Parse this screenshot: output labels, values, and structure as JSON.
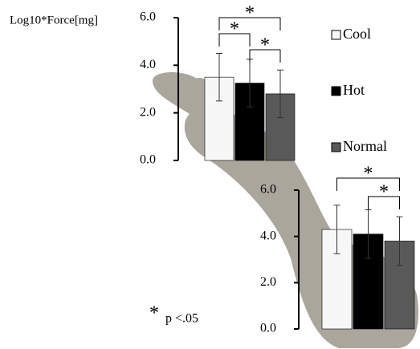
{
  "chart_data": {
    "type": "bar",
    "y_label": "Log10*Force[mg]",
    "categories": [
      null,
      null
    ],
    "series": [
      {
        "name": "Cool",
        "color": "#f7f7f7",
        "values": [
          3.5,
          4.3
        ],
        "errors": [
          1.0,
          1.05
        ]
      },
      {
        "name": "Hot",
        "color": "#000000",
        "values": [
          3.25,
          4.1
        ],
        "errors": [
          1.0,
          1.05
        ]
      },
      {
        "name": "Normal",
        "color": "#595959",
        "values": [
          2.8,
          3.8
        ],
        "errors": [
          1.0,
          1.05
        ]
      }
    ],
    "panels": [
      {
        "ylim": [
          0,
          6
        ],
        "yticks": [
          {
            "value": 0,
            "label": "0.0"
          },
          {
            "value": 2,
            "label": "2.0"
          },
          {
            "value": 4,
            "label": "4.0"
          },
          {
            "value": 6,
            "label": "6.0"
          }
        ]
      },
      {
        "ylim": [
          0,
          6
        ],
        "yticks": [
          {
            "value": 0,
            "label": "0.0"
          },
          {
            "value": 2,
            "label": "2.0"
          },
          {
            "value": 4,
            "label": "4.0"
          },
          {
            "value": 6,
            "label": "6.0"
          }
        ]
      }
    ],
    "significance": [
      {
        "panel": 0,
        "pair": [
          0,
          1
        ],
        "label": "*"
      },
      {
        "panel": 0,
        "pair": [
          1,
          2
        ],
        "label": "*"
      },
      {
        "panel": 0,
        "pair": [
          0,
          2
        ],
        "label": "*"
      },
      {
        "panel": 1,
        "pair": [
          0,
          2
        ],
        "label": "*"
      },
      {
        "panel": 1,
        "pair": [
          1,
          2
        ],
        "label": "*"
      }
    ],
    "note": {
      "symbol": "*",
      "text": "p <.05"
    }
  }
}
